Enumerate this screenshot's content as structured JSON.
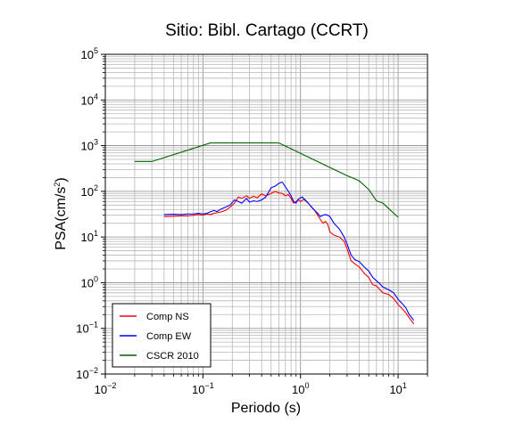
{
  "chart_data": {
    "type": "line",
    "title": "Sitio: Bibl. Cartago (CCRT)",
    "xlabel": "Periodo (s)",
    "ylabel": {
      "base": "PSA(cm/s",
      "sup": "2",
      "tail": ")"
    },
    "x_scale": "log",
    "y_scale": "log",
    "xlim": [
      0.01,
      20
    ],
    "ylim": [
      0.01,
      100000
    ],
    "grid": true,
    "legend_position": "bottom-left",
    "x_ticks": [
      {
        "base": "10",
        "exp": "−2"
      },
      {
        "base": "10",
        "exp": "−1"
      },
      {
        "base": "10",
        "exp": "0"
      },
      {
        "base": "10",
        "exp": "1"
      }
    ],
    "y_ticks": [
      {
        "base": "10",
        "exp": "−2"
      },
      {
        "base": "10",
        "exp": "−1"
      },
      {
        "base": "10",
        "exp": "0"
      },
      {
        "base": "10",
        "exp": "1"
      },
      {
        "base": "10",
        "exp": "2"
      },
      {
        "base": "10",
        "exp": "3"
      },
      {
        "base": "10",
        "exp": "4"
      },
      {
        "base": "10",
        "exp": "5"
      }
    ],
    "series": [
      {
        "name": "Comp NS",
        "color": "#ff0000",
        "points": [
          [
            0.04,
            28
          ],
          [
            0.05,
            28.5
          ],
          [
            0.06,
            29
          ],
          [
            0.07,
            29
          ],
          [
            0.08,
            30
          ],
          [
            0.09,
            31
          ],
          [
            0.1,
            30
          ],
          [
            0.11,
            32
          ],
          [
            0.12,
            31
          ],
          [
            0.13,
            33
          ],
          [
            0.15,
            35
          ],
          [
            0.17,
            38
          ],
          [
            0.19,
            45
          ],
          [
            0.21,
            55
          ],
          [
            0.23,
            75
          ],
          [
            0.25,
            70
          ],
          [
            0.28,
            80
          ],
          [
            0.3,
            70
          ],
          [
            0.33,
            78
          ],
          [
            0.36,
            72
          ],
          [
            0.4,
            88
          ],
          [
            0.44,
            80
          ],
          [
            0.5,
            90
          ],
          [
            0.55,
            100
          ],
          [
            0.6,
            92
          ],
          [
            0.65,
            90
          ],
          [
            0.7,
            80
          ],
          [
            0.75,
            85
          ],
          [
            0.8,
            70
          ],
          [
            0.85,
            55
          ],
          [
            0.9,
            60
          ],
          [
            0.95,
            65
          ],
          [
            1.0,
            60
          ],
          [
            1.1,
            68
          ],
          [
            1.2,
            55
          ],
          [
            1.3,
            45
          ],
          [
            1.4,
            38
          ],
          [
            1.5,
            30
          ],
          [
            1.6,
            24
          ],
          [
            1.7,
            20
          ],
          [
            1.8,
            22
          ],
          [
            1.9,
            19
          ],
          [
            2.0,
            13
          ],
          [
            2.2,
            11
          ],
          [
            2.5,
            10
          ],
          [
            2.8,
            8
          ],
          [
            3.0,
            5.5
          ],
          [
            3.3,
            3
          ],
          [
            3.6,
            2.6
          ],
          [
            4.0,
            2.2
          ],
          [
            4.5,
            1.6
          ],
          [
            5.0,
            1.3
          ],
          [
            5.5,
            0.9
          ],
          [
            6.0,
            0.85
          ],
          [
            6.5,
            0.7
          ],
          [
            7.0,
            0.6
          ],
          [
            8.0,
            0.55
          ],
          [
            9.0,
            0.45
          ],
          [
            10.0,
            0.33
          ],
          [
            11.0,
            0.27
          ],
          [
            12.0,
            0.22
          ],
          [
            13.0,
            0.17
          ],
          [
            14.5,
            0.125
          ]
        ]
      },
      {
        "name": "Comp EW",
        "color": "#0000ff",
        "points": [
          [
            0.04,
            31
          ],
          [
            0.05,
            31.5
          ],
          [
            0.06,
            31
          ],
          [
            0.07,
            32
          ],
          [
            0.08,
            32
          ],
          [
            0.09,
            33
          ],
          [
            0.1,
            32
          ],
          [
            0.11,
            33
          ],
          [
            0.12,
            36
          ],
          [
            0.13,
            38
          ],
          [
            0.14,
            36
          ],
          [
            0.15,
            40
          ],
          [
            0.17,
            45
          ],
          [
            0.19,
            50
          ],
          [
            0.21,
            65
          ],
          [
            0.23,
            60
          ],
          [
            0.25,
            55
          ],
          [
            0.28,
            70
          ],
          [
            0.3,
            58
          ],
          [
            0.33,
            62
          ],
          [
            0.36,
            60
          ],
          [
            0.4,
            65
          ],
          [
            0.44,
            75
          ],
          [
            0.5,
            120
          ],
          [
            0.55,
            130
          ],
          [
            0.6,
            150
          ],
          [
            0.65,
            160
          ],
          [
            0.7,
            125
          ],
          [
            0.75,
            100
          ],
          [
            0.8,
            80
          ],
          [
            0.85,
            60
          ],
          [
            0.9,
            55
          ],
          [
            0.95,
            68
          ],
          [
            1.0,
            72
          ],
          [
            1.05,
            75
          ],
          [
            1.1,
            65
          ],
          [
            1.2,
            55
          ],
          [
            1.3,
            45
          ],
          [
            1.4,
            38
          ],
          [
            1.5,
            33
          ],
          [
            1.6,
            28
          ],
          [
            1.7,
            30
          ],
          [
            1.8,
            31
          ],
          [
            1.9,
            30
          ],
          [
            2.0,
            28
          ],
          [
            2.2,
            20
          ],
          [
            2.5,
            15
          ],
          [
            2.8,
            10
          ],
          [
            3.0,
            7
          ],
          [
            3.3,
            4
          ],
          [
            3.6,
            3.2
          ],
          [
            4.0,
            2.9
          ],
          [
            4.5,
            2.2
          ],
          [
            5.0,
            1.8
          ],
          [
            5.5,
            1.3
          ],
          [
            6.0,
            1.1
          ],
          [
            6.5,
            0.95
          ],
          [
            7.0,
            0.8
          ],
          [
            8.0,
            0.7
          ],
          [
            9.0,
            0.6
          ],
          [
            10.0,
            0.43
          ],
          [
            11.0,
            0.35
          ],
          [
            12.0,
            0.28
          ],
          [
            13.0,
            0.2
          ],
          [
            14.5,
            0.15
          ]
        ]
      },
      {
        "name": "CSCR 2010",
        "color": "#006400",
        "points": [
          [
            0.02,
            450
          ],
          [
            0.03,
            450
          ],
          [
            0.12,
            1150
          ],
          [
            0.6,
            1150
          ],
          [
            3.0,
            220
          ],
          [
            4.0,
            170
          ],
          [
            5.0,
            110
          ],
          [
            6.0,
            62
          ],
          [
            7.0,
            55
          ],
          [
            8.0,
            42
          ],
          [
            10.0,
            27
          ]
        ]
      }
    ]
  }
}
